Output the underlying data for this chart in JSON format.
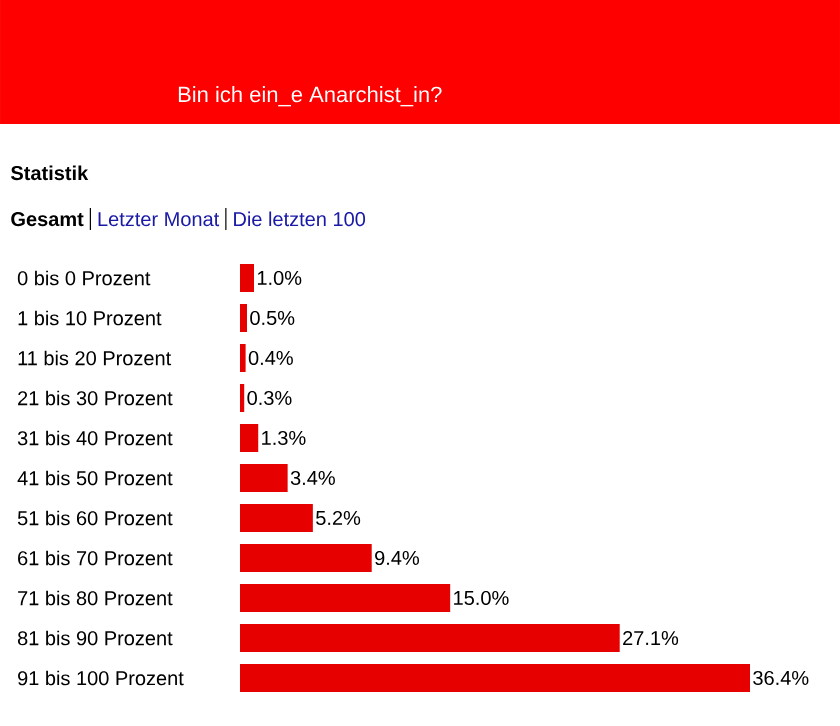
{
  "chart_data": {
    "type": "bar",
    "orientation": "horizontal",
    "subtitle": "Bin ich ein_e Anarchist_in?",
    "annotations": [
      "Statistik",
      "Gesamt",
      "Letzter Monat",
      "Die letzten 100"
    ],
    "categories": [
      "0 bis 0 Prozent",
      "1 bis 10 Prozent",
      "11 bis 20 Prozent",
      "21 bis 30 Prozent",
      "31 bis 40 Prozent",
      "41 bis 50 Prozent",
      "51 bis 60 Prozent",
      "61 bis 70 Prozent",
      "71 bis 80 Prozent",
      "81 bis 90 Prozent",
      "91 bis 100 Prozent"
    ],
    "values": [
      1.0,
      0.5,
      0.4,
      0.3,
      1.3,
      3.4,
      5.2,
      9.4,
      15.0,
      27.1,
      36.4
    ],
    "value_labels": [
      "1.0%",
      "0.5%",
      "0.4%",
      "0.3%",
      "1.3%",
      "3.4%",
      "5.2%",
      "9.4%",
      "15.0%",
      "27.1%",
      "36.4%"
    ],
    "color": "#e60000"
  }
}
